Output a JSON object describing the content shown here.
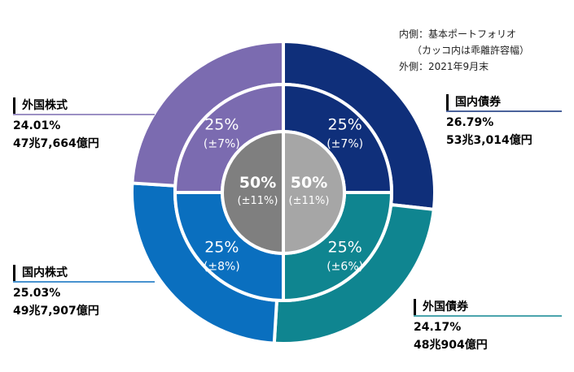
{
  "notes": {
    "line1": "内側：基本ポートフォリオ",
    "line2": "（カッコ内は乖離許容幅）",
    "line3": "外側：2021年9月末"
  },
  "chart_data": {
    "type": "pie",
    "subtype": "nested-donut",
    "outer": [
      {
        "label": "国内債券",
        "percent": 26.79,
        "percent_text": "26.79%",
        "amount": "53兆3,014億円",
        "color": "#0f2f7a"
      },
      {
        "label": "外国債券",
        "percent": 24.17,
        "percent_text": "24.17%",
        "amount": "48兆904億円",
        "color": "#0f8590"
      },
      {
        "label": "国内株式",
        "percent": 25.03,
        "percent_text": "25.03%",
        "amount": "49兆7,907億円",
        "color": "#0a6fbf"
      },
      {
        "label": "外国株式",
        "percent": 24.01,
        "percent_text": "24.01%",
        "amount": "47兆7,664億円",
        "color": "#7b6bb0"
      }
    ],
    "middle": [
      {
        "value": 25,
        "label": "25%",
        "range": "(±7%)",
        "color": "#0f2f7a"
      },
      {
        "value": 25,
        "label": "25%",
        "range": "(±6%)",
        "color": "#0f8590"
      },
      {
        "value": 25,
        "label": "25%",
        "range": "(±8%)",
        "color": "#0a6fbf"
      },
      {
        "value": 25,
        "label": "25%",
        "range": "(±7%)",
        "color": "#7b6bb0"
      }
    ],
    "inner": [
      {
        "value": 50,
        "label": "50%",
        "range": "(±11%)",
        "color": "#a6a6a6"
      },
      {
        "value": 50,
        "label": "50%",
        "range": "(±11%)",
        "color": "#7f7f7f"
      }
    ]
  }
}
